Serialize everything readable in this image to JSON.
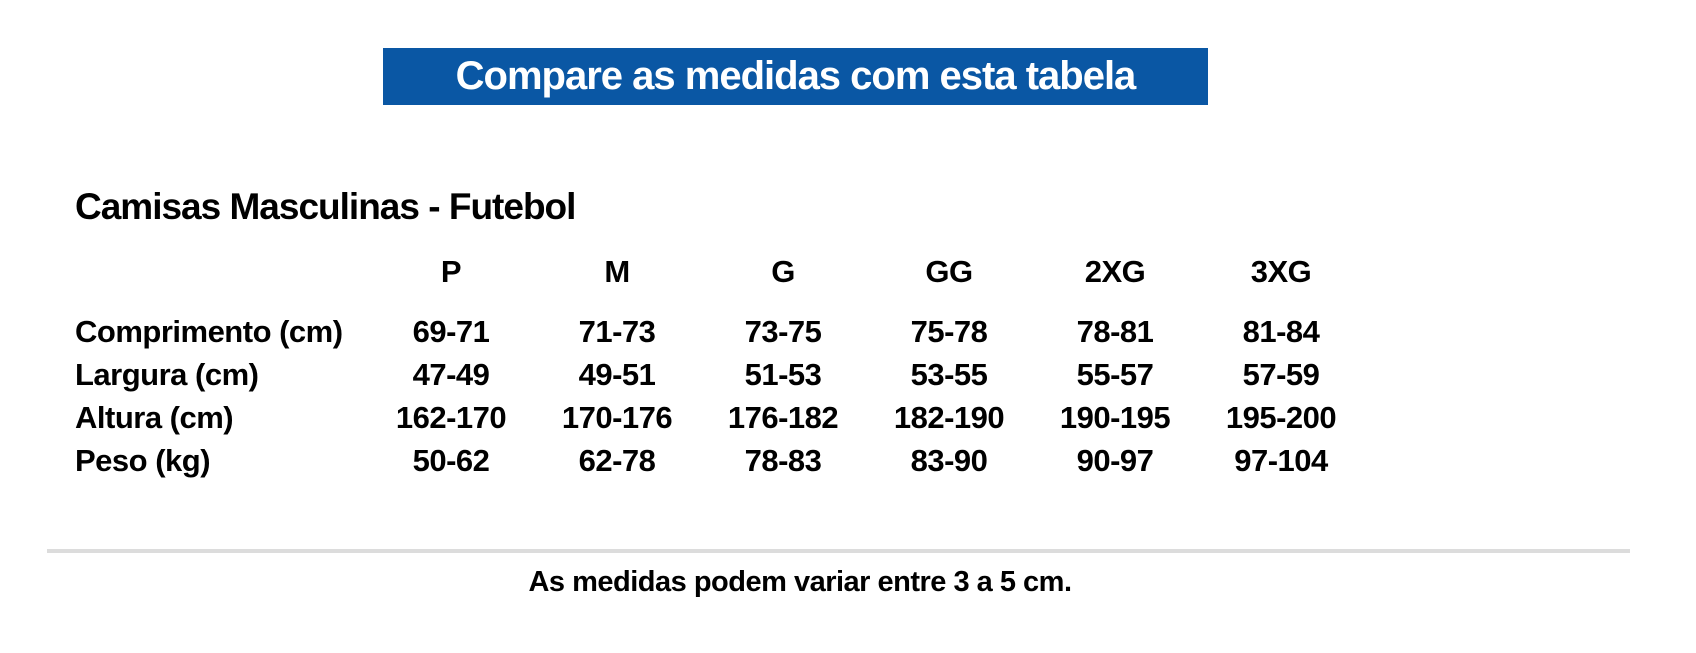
{
  "banner": {
    "text": "Compare as medidas com esta tabela",
    "bg_color": "#0a57a4",
    "text_color": "#ffffff"
  },
  "section": {
    "title": "Camisas Masculinas - Futebol"
  },
  "size_table": {
    "columns": [
      "P",
      "M",
      "G",
      "GG",
      "2XG",
      "3XG"
    ],
    "rows": [
      {
        "label": "Comprimento (cm)",
        "values": [
          "69-71",
          "71-73",
          "73-75",
          "75-78",
          "78-81",
          "81-84"
        ]
      },
      {
        "label": "Largura (cm)",
        "values": [
          "47-49",
          "49-51",
          "51-53",
          "53-55",
          "55-57",
          "57-59"
        ]
      },
      {
        "label": "Altura (cm)",
        "values": [
          "162-170",
          "170-176",
          "176-182",
          "182-190",
          "190-195",
          "195-200"
        ]
      },
      {
        "label": "Peso (kg)",
        "values": [
          "50-62",
          "62-78",
          "78-83",
          "83-90",
          "90-97",
          "97-104"
        ]
      }
    ]
  },
  "footer": {
    "note": "As medidas podem variar entre 3 a 5 cm."
  },
  "colors": {
    "accent_blue": "#0a57a4",
    "divider_gray": "#dcdcdc",
    "text_black": "#000000"
  }
}
